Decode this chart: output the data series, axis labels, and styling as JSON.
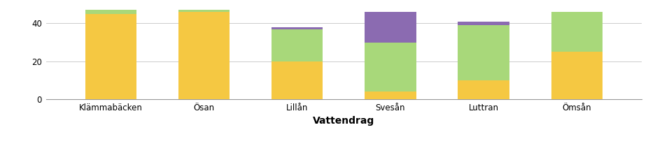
{
  "categories": [
    "Klämmabäcken",
    "Ösan",
    "Lillån",
    "Svesån",
    "Luttran",
    "Ömsån"
  ],
  "yellow": [
    45,
    46,
    20,
    4,
    10,
    25
  ],
  "green": [
    2,
    1,
    17,
    26,
    29,
    21
  ],
  "purple": [
    0,
    0,
    1,
    16,
    2,
    0
  ],
  "yellow_color": "#F5C842",
  "green_color": "#A8D87A",
  "purple_color": "#8B6BB1",
  "xlabel": "Vattendrag",
  "yticks": [
    0,
    20,
    40
  ],
  "ylim": [
    0,
    50
  ],
  "background_color": "#ffffff",
  "bar_width": 0.55,
  "grid_color": "#cccccc"
}
